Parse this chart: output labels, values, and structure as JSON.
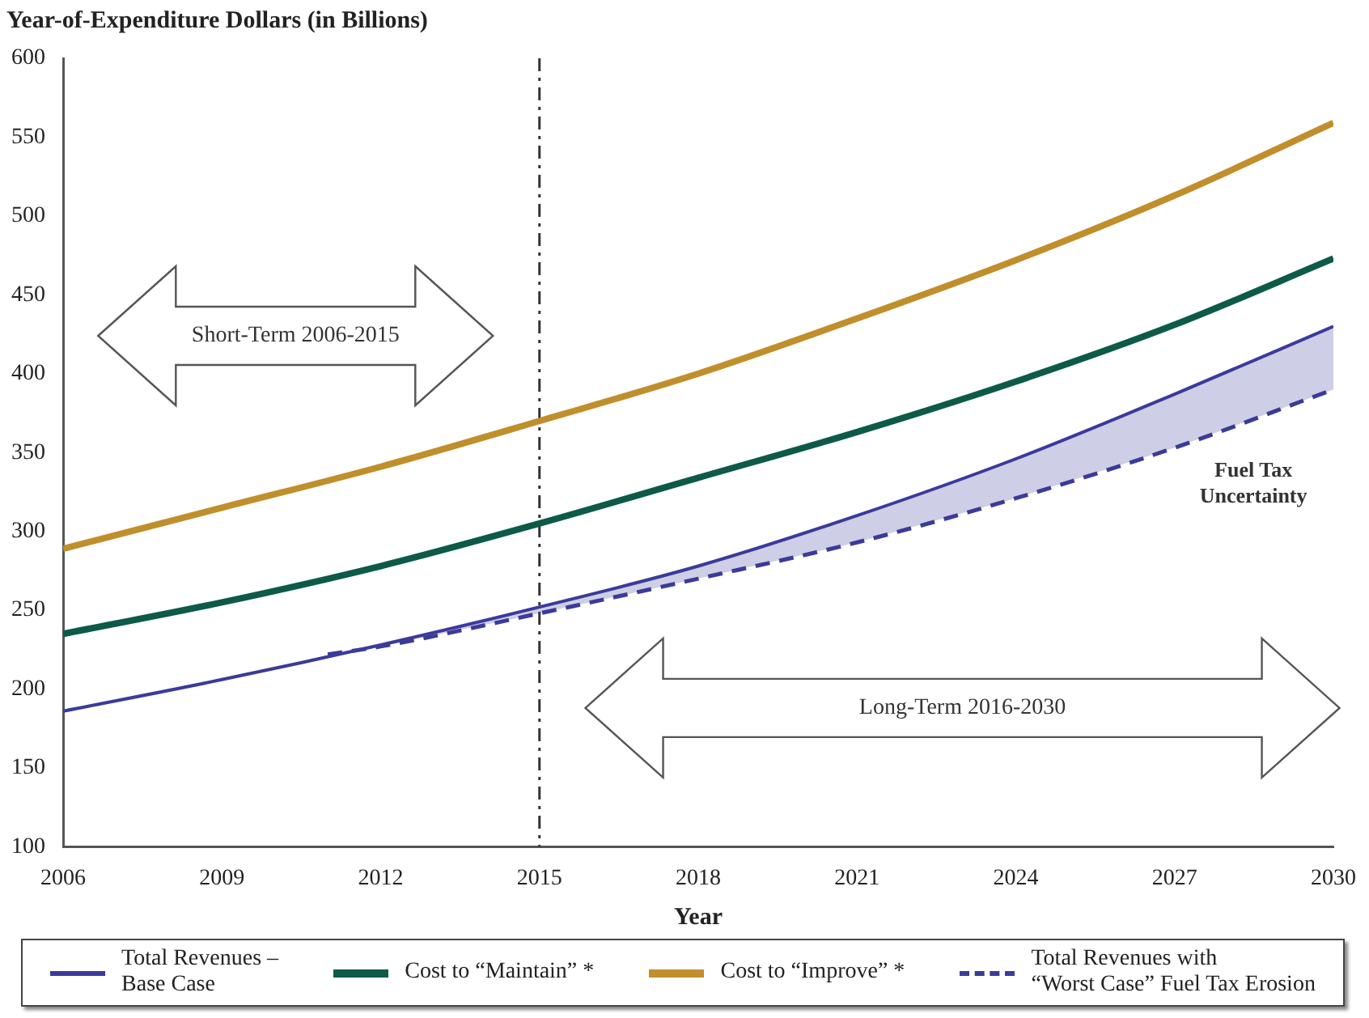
{
  "chart_data": {
    "type": "line",
    "title": "Year-of-Expenditure Dollars (in Billions)",
    "xlabel": "Year",
    "x": [
      2006,
      2009,
      2012,
      2015,
      2018,
      2021,
      2024,
      2027,
      2030
    ],
    "xlim": [
      2006,
      2030
    ],
    "xticks": [
      2006,
      2009,
      2012,
      2015,
      2018,
      2021,
      2024,
      2027,
      2030
    ],
    "ylim": [
      100,
      600
    ],
    "yticks": [
      100,
      150,
      200,
      250,
      300,
      350,
      400,
      450,
      500,
      550,
      600
    ],
    "grid": false,
    "legend": "bottom",
    "marker": "none",
    "series": [
      {
        "name": "Total Revenues –\nBase Case",
        "color": "#3b3b9a",
        "values": [
          186,
          206,
          228,
          252,
          278,
          310,
          346,
          387,
          430
        ]
      },
      {
        "name": "Cost to “Maintain” *",
        "color": "#0d5a48",
        "values": [
          235,
          255,
          278,
          305,
          334,
          363,
          395,
          431,
          473
        ]
      },
      {
        "name": "Cost to “Improve” *",
        "color": "#c08f2c",
        "values": [
          289,
          315,
          341,
          370,
          400,
          435,
          472,
          513,
          559
        ]
      },
      {
        "name": "Total Revenues with\n“Worst Case” Fuel Tax Erosion",
        "color": "#3b3b9a",
        "line_style": "dashed",
        "x": [
          2011,
          2012,
          2015,
          2018,
          2021,
          2024,
          2027,
          2030
        ],
        "values": [
          222,
          227,
          248,
          270,
          293,
          321,
          353,
          390
        ],
        "lower": [
          222,
          227,
          248,
          270,
          293,
          321,
          353,
          390
        ],
        "upper": [
          222,
          228,
          252,
          278,
          310,
          346,
          387,
          430
        ]
      }
    ],
    "ref_lines": [
      {
        "axis": "x",
        "value": 2015,
        "color": "#333333",
        "line_style": "dashdot"
      }
    ],
    "annotations": [
      "Short-Term 2006-2015",
      "Long-Term 2016-2030",
      "Fuel Tax\nUncertainty"
    ]
  }
}
